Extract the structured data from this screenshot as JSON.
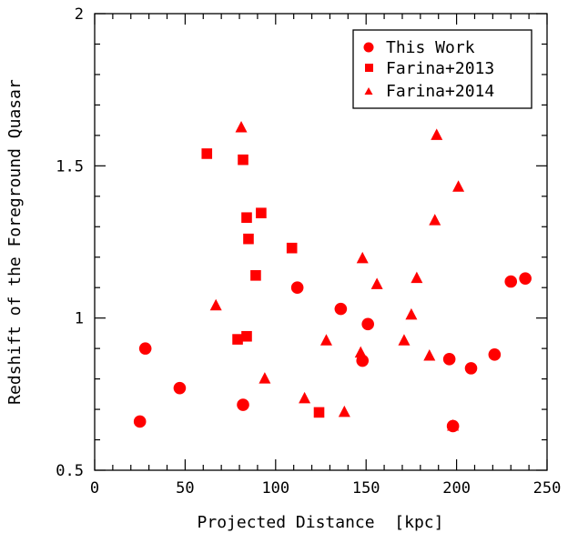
{
  "chart_data": {
    "type": "scatter",
    "xlabel": "Projected Distance  [kpc]",
    "ylabel": "Redshift of the Foreground Quasar",
    "xlim": [
      0,
      250
    ],
    "ylim": [
      0.5,
      2
    ],
    "x_ticks": [
      "0",
      "50",
      "100",
      "150",
      "200",
      "250"
    ],
    "y_ticks": [
      "0.5",
      "1",
      "1.5",
      "2"
    ],
    "marker_color": "#ff0000",
    "legend_position": "top-right",
    "series": [
      {
        "name": "This Work",
        "marker": "circle",
        "points": [
          [
            25,
            0.66
          ],
          [
            28,
            0.9
          ],
          [
            47,
            0.77
          ],
          [
            82,
            0.715
          ],
          [
            112,
            1.1
          ],
          [
            136,
            1.03
          ],
          [
            148,
            0.86
          ],
          [
            151,
            0.98
          ],
          [
            196,
            0.865
          ],
          [
            198,
            0.645
          ],
          [
            208,
            0.835
          ],
          [
            221,
            0.88
          ],
          [
            230,
            1.12
          ],
          [
            238,
            1.13
          ]
        ]
      },
      {
        "name": "Farina+2013",
        "marker": "square",
        "points": [
          [
            62,
            1.54
          ],
          [
            79,
            0.93
          ],
          [
            82,
            1.52
          ],
          [
            84,
            0.94
          ],
          [
            84,
            1.33
          ],
          [
            85,
            1.26
          ],
          [
            89,
            1.14
          ],
          [
            92,
            1.345
          ],
          [
            109,
            1.23
          ],
          [
            124,
            0.69
          ]
        ]
      },
      {
        "name": "Farina+2014",
        "marker": "triangle",
        "points": [
          [
            67,
            1.04
          ],
          [
            81,
            1.625
          ],
          [
            94,
            0.8
          ],
          [
            116,
            0.735
          ],
          [
            128,
            0.925
          ],
          [
            138,
            0.69
          ],
          [
            147,
            0.885
          ],
          [
            148,
            1.195
          ],
          [
            156,
            1.11
          ],
          [
            171,
            0.925
          ],
          [
            175,
            1.01
          ],
          [
            178,
            1.13
          ],
          [
            185,
            0.875
          ],
          [
            188,
            1.32
          ],
          [
            189,
            1.6
          ],
          [
            198,
            0.645
          ],
          [
            201,
            1.43
          ]
        ]
      }
    ]
  }
}
